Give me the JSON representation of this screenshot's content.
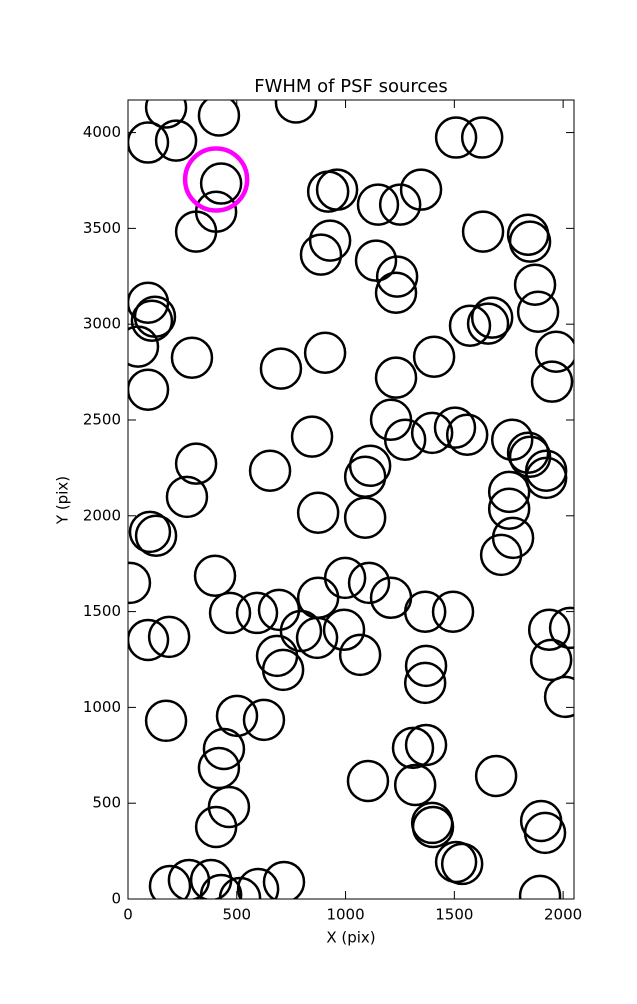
{
  "chart_data": {
    "type": "scatter",
    "title": "FWHM of PSF sources",
    "xlabel": "X (pix)",
    "ylabel": "Y (pix)",
    "xlim": [
      0,
      2050
    ],
    "ylim": [
      0,
      4170
    ],
    "xticks": [
      0,
      500,
      1000,
      1500,
      2000
    ],
    "yticks": [
      0,
      500,
      1000,
      1500,
      2000,
      2500,
      3000,
      3500,
      4000
    ],
    "series": [
      {
        "color": "#000000",
        "x": [
          175,
          418,
          92,
          221,
          772,
          1508,
          1628,
          428,
          405,
          313,
          920,
          961,
          1149,
          1251,
          1347,
          929,
          887,
          1140,
          1237,
          1232,
          1632,
          1839,
          1848,
          92,
          124,
          110,
          46,
          294,
          703,
          906,
          1871,
          1885,
          1674,
          1655,
          1572,
          1968,
          1949,
          1407,
          1232,
          92,
          846,
          1209,
          1274,
          1398,
          1503,
          1559,
          1766,
          1839,
          1848,
          1922,
          1922,
          313,
          653,
          271,
          1113,
          1090,
          874,
          1090,
          1752,
          1752,
          1770,
          1715,
          101,
          129,
          9,
          400,
          998,
          1108,
          874,
          1209,
          469,
          593,
          694,
          1366,
          1494,
          92,
          189,
          795,
          869,
          993,
          1067,
          685,
          713,
          1936,
          2032,
          1945,
          2009,
          1370,
          1366,
          175,
          501,
          625,
          441,
          418,
          1310,
          1370,
          1103,
          1320,
          1692,
          464,
          405,
          1398,
          1402,
          1899,
          1917,
          1508,
          1536,
          193,
          280,
          382,
          428,
          515,
          598,
          717,
          1894
        ],
        "y": [
          4131,
          4089,
          3948,
          3958,
          4157,
          3974,
          3974,
          3734,
          3587,
          3483,
          3692,
          3702,
          3624,
          3624,
          3702,
          3436,
          3363,
          3332,
          3248,
          3164,
          3483,
          3467,
          3431,
          3112,
          3039,
          3018,
          2883,
          2825,
          2768,
          2851,
          3206,
          3065,
          3034,
          3003,
          2992,
          2856,
          2700,
          2830,
          2721,
          2658,
          2413,
          2501,
          2397,
          2433,
          2460,
          2423,
          2397,
          2329,
          2308,
          2235,
          2198,
          2272,
          2235,
          2099,
          2261,
          2204,
          2016,
          1990,
          2125,
          2037,
          1885,
          1796,
          1916,
          1896,
          1650,
          1687,
          1676,
          1650,
          1572,
          1572,
          1493,
          1493,
          1509,
          1499,
          1499,
          1352,
          1368,
          1399,
          1363,
          1405,
          1274,
          1269,
          1196,
          1405,
          1415,
          1248,
          1055,
          1217,
          1128,
          930,
          956,
          935,
          783,
          684,
          789,
          804,
          616,
          595,
          642,
          480,
          376,
          397,
          376,
          407,
          345,
          193,
          183,
          68,
          99,
          99,
          21,
          5,
          52,
          89,
          16
        ]
      },
      {
        "color": "#ff00ff",
        "x": [
          405
        ],
        "y": [
          3755
        ]
      }
    ]
  }
}
